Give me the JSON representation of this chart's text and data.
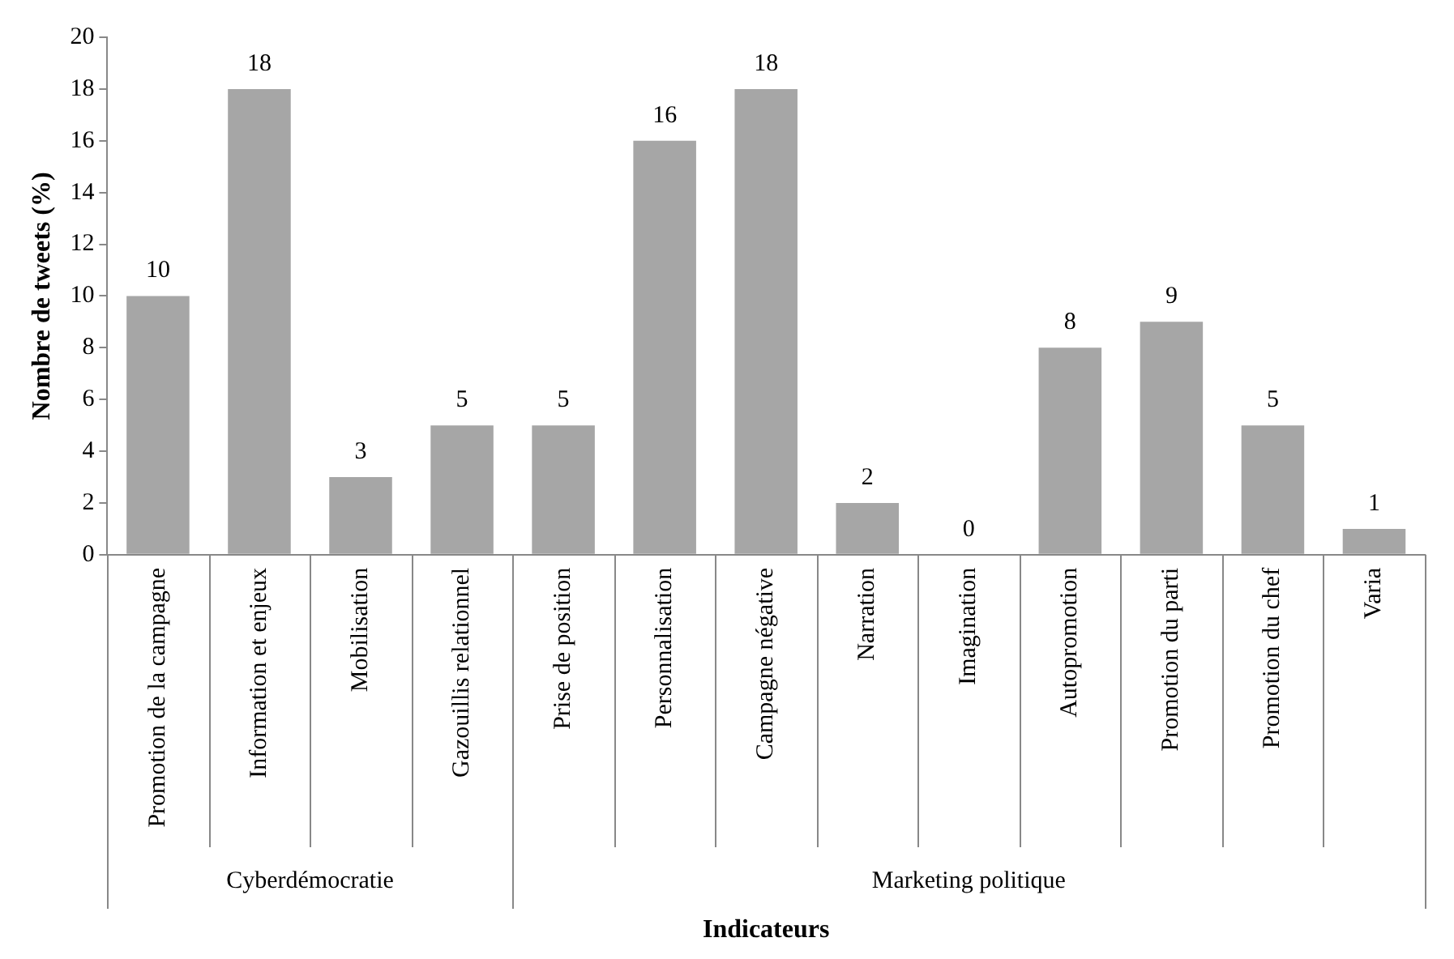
{
  "chart_data": {
    "type": "bar",
    "xlabel": "Indicateurs",
    "ylabel": "Nombre de tweets (%)",
    "categories": [
      "Promotion de la campagne",
      "Information et enjeux",
      "Mobilisation",
      "Gazouillis relationnel",
      "Prise de position",
      "Personnalisation",
      "Campagne négative",
      "Narration",
      "Imagination",
      "Autopromotion",
      "Promotion du parti",
      "Promotion du chef",
      "Varia"
    ],
    "values": [
      10,
      18,
      3,
      5,
      5,
      16,
      18,
      2,
      0,
      8,
      9,
      5,
      1
    ],
    "color": "#a6a6a6",
    "ylim": [
      0,
      20
    ],
    "yticks": [
      0,
      2,
      4,
      6,
      8,
      10,
      12,
      14,
      16,
      18,
      20
    ],
    "grid": false,
    "legend": false,
    "data_labels": true,
    "annotations": [
      "Cyberdémocratie",
      "Marketing politique"
    ]
  }
}
